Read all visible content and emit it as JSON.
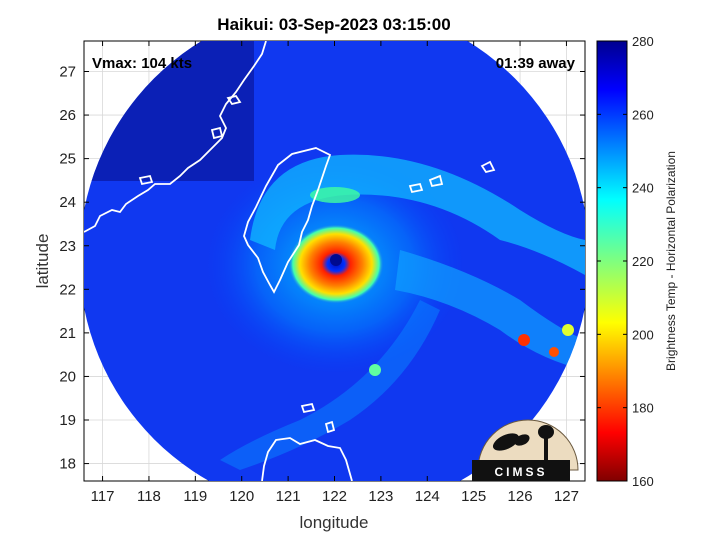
{
  "chart_data": {
    "type": "heatmap",
    "title": "Haikui: 03-Sep-2023 03:15:00",
    "xlabel": "longitude",
    "ylabel": "latitude",
    "xlim": [
      116.6,
      127.4
    ],
    "ylim": [
      17.6,
      27.7
    ],
    "xticks": [
      "117",
      "118",
      "119",
      "120",
      "121",
      "122",
      "123",
      "124",
      "125",
      "126",
      "127"
    ],
    "yticks": [
      "18",
      "19",
      "20",
      "21",
      "22",
      "23",
      "24",
      "25",
      "26",
      "27"
    ],
    "grid": true,
    "annotations": {
      "vmax": "Vmax: 104 kts",
      "time_away": "01:39 away"
    },
    "colorbar": {
      "label": "Brightness Temp - Horizontal Polarization",
      "ticks": [
        "160",
        "180",
        "200",
        "220",
        "240",
        "260",
        "280"
      ],
      "range": [
        160,
        280
      ],
      "colormap": "jet"
    },
    "storm_center": {
      "lon": 122.0,
      "lat": 22.4
    },
    "swath": {
      "center_lon": 122.0,
      "center_lat": 22.7,
      "radius_deg": 5.5
    },
    "logo": "CIMSS"
  }
}
